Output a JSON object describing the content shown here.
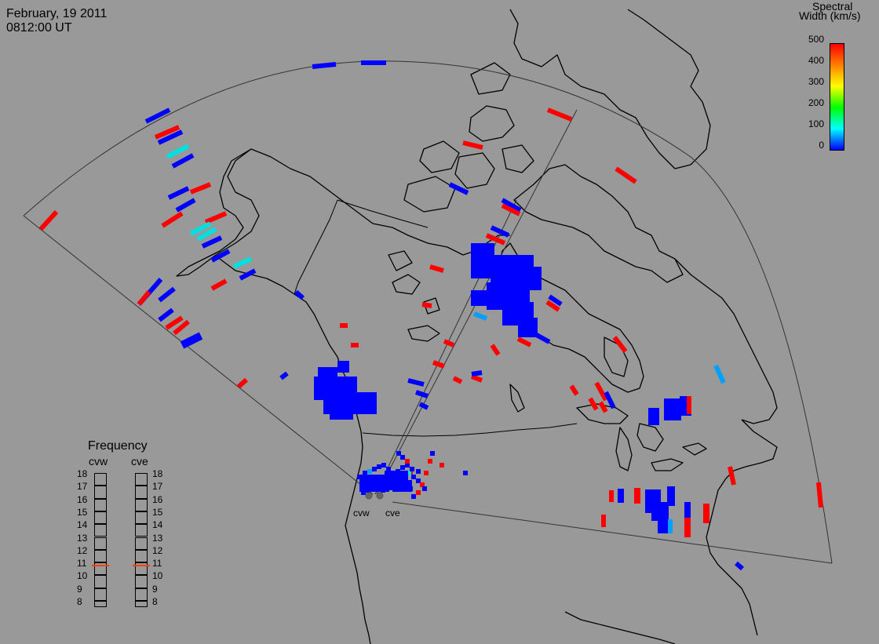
{
  "header": {
    "date": "February, 19 2011",
    "time": "0812:00 UT"
  },
  "colorbar": {
    "title_line1": "Spectral",
    "title_line2": "Width (km/s)",
    "ticks": [
      "500",
      "400",
      "300",
      "200",
      "100",
      "0"
    ],
    "colors": [
      "#ff0000",
      "#ff8000",
      "#ffff00",
      "#00ff00",
      "#00ffff",
      "#0000ff"
    ]
  },
  "frequency_panel": {
    "title": "Frequency",
    "col_left": "cvw",
    "col_right": "cve",
    "levels": [
      "18",
      "17",
      "16",
      "15",
      "14",
      "13",
      "12",
      "11",
      "10",
      "9",
      "8"
    ],
    "cvw_value": 10.8,
    "cve_value": 10.8,
    "marker_color": "#ff4000"
  },
  "radars": {
    "west_label": "cvw",
    "east_label": "cve"
  },
  "colors": {
    "background": "#999999",
    "coastline": "#000000",
    "fov_outline": "#444444",
    "low_width": "#0000ff",
    "high_width": "#ff0000",
    "mid_width": "#00e0e0",
    "light_blue": "#00a0ff"
  }
}
